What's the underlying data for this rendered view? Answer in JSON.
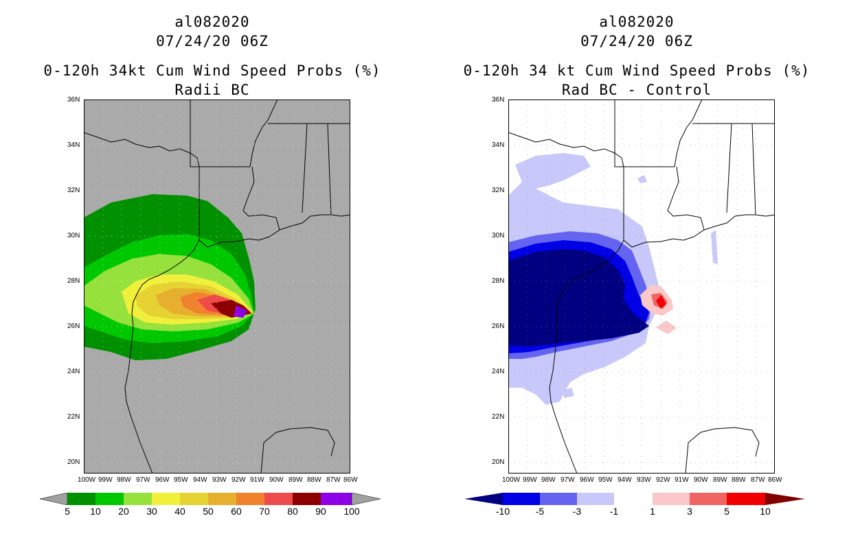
{
  "left_panel": {
    "title1": "al082020",
    "title2": "07/24/20 06Z",
    "title3": "0-120h 34kt Cum Wind Speed Probs (%)",
    "title4": "Radii BC",
    "colorbar": {
      "labels": [
        "5",
        "10",
        "20",
        "30",
        "40",
        "50",
        "60",
        "70",
        "80",
        "90",
        "100"
      ],
      "colors": [
        "#009000",
        "#00c800",
        "#96e13c",
        "#f0f03c",
        "#e6d232",
        "#e6af2d",
        "#f0822d",
        "#f04b4b",
        "#8c0000",
        "#8c00e6"
      ],
      "end_color": "#a0a0a0"
    }
  },
  "right_panel": {
    "title1": "al082020",
    "title2": "07/24/20 06Z",
    "title3": "0-120h 34 kt Cum Wind Speed Probs (%)",
    "title4": "Rad BC - Control",
    "colorbar": {
      "labels": [
        "-10",
        "-5",
        "-3",
        "-1",
        "1",
        "3",
        "5",
        "10"
      ],
      "colors": [
        "#0000e6",
        "#6464f0",
        "#c8c8fa",
        "#ffffff",
        "#fac8c8",
        "#f06464",
        "#f00000"
      ],
      "low_end_color": "#000080",
      "high_end_color": "#800000"
    }
  },
  "axes": {
    "lat_labels": [
      "36N",
      "34N",
      "32N",
      "30N",
      "28N",
      "26N",
      "24N",
      "22N",
      "20N"
    ],
    "lon_labels": [
      "100W",
      "99W",
      "98W",
      "97W",
      "96W",
      "95W",
      "94W",
      "93W",
      "92W",
      "91W",
      "90W",
      "89W",
      "88W",
      "87W",
      "86W"
    ]
  },
  "colors": {
    "land_ocean_bg": "#aaaaaa",
    "coast": "#000000"
  }
}
